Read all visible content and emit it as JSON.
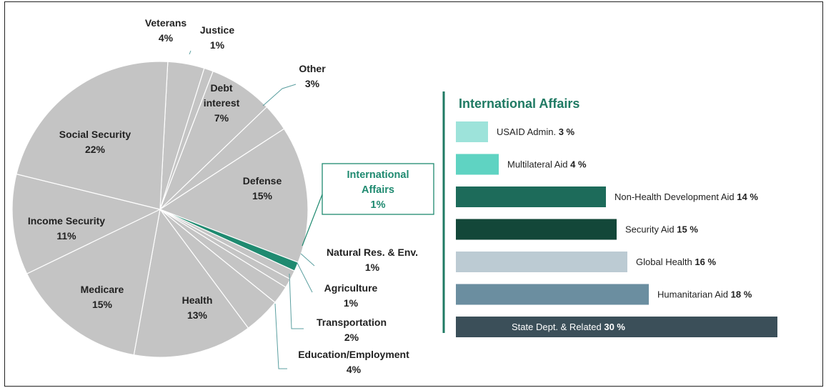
{
  "chart_data": [
    {
      "type": "pie",
      "slices": [
        {
          "label": "Veterans",
          "value": 4,
          "display": "4%",
          "color": "#c4c4c4"
        },
        {
          "label": "Justice",
          "value": 1,
          "display": "1%",
          "color": "#c4c4c4"
        },
        {
          "label": "Debt interest",
          "value": 7,
          "display": "7%",
          "color": "#c4c4c4"
        },
        {
          "label": "Other",
          "value": 3,
          "display": "3%",
          "color": "#c4c4c4"
        },
        {
          "label": "Defense",
          "value": 15,
          "display": "15%",
          "color": "#c4c4c4"
        },
        {
          "label": "International Affairs",
          "value": 1,
          "display": "1%",
          "color": "#1f8a70"
        },
        {
          "label": "Natural Res. & Env.",
          "value": 1,
          "display": "1%",
          "color": "#c4c4c4"
        },
        {
          "label": "Agriculture",
          "value": 1,
          "display": "1%",
          "color": "#c4c4c4"
        },
        {
          "label": "Transportation",
          "value": 2,
          "display": "2%",
          "color": "#c4c4c4"
        },
        {
          "label": "Education/Employment",
          "value": 4,
          "display": "4%",
          "color": "#c4c4c4"
        },
        {
          "label": "Health",
          "value": 13,
          "display": "13%",
          "color": "#c4c4c4"
        },
        {
          "label": "Medicare",
          "value": 15,
          "display": "15%",
          "color": "#c4c4c4"
        },
        {
          "label": "Income Security",
          "value": 11,
          "display": "11%",
          "color": "#c4c4c4"
        },
        {
          "label": "Social Security",
          "value": 22,
          "display": "22%",
          "color": "#c4c4c4"
        }
      ],
      "colors": {
        "slice": "#c4c4c4",
        "highlight": "#1f8a70",
        "separator": "#ffffff",
        "label": "#222222",
        "callout": "#5b9fa0"
      }
    },
    {
      "type": "bar",
      "orientation": "horizontal",
      "title": "International Affairs",
      "title_color": "#1f7a63",
      "unit": "%",
      "bars": [
        {
          "label": "USAID Admin.",
          "value": 3,
          "color": "#9de3da"
        },
        {
          "label": "Multilateral Aid",
          "value": 4,
          "color": "#5fd3c2"
        },
        {
          "label": "Non-Health Development Aid",
          "value": 14,
          "color": "#1d6b5a"
        },
        {
          "label": "Security Aid",
          "value": 15,
          "color": "#134739"
        },
        {
          "label": "Global Health",
          "value": 16,
          "color": "#bccbd3"
        },
        {
          "label": "Humanitarian Aid",
          "value": 18,
          "color": "#6b8ea0"
        },
        {
          "label": "State Dept. & Related",
          "value": 30,
          "color": "#3b4f59",
          "label_inside": true,
          "label_color": "#ffffff"
        }
      ]
    }
  ]
}
